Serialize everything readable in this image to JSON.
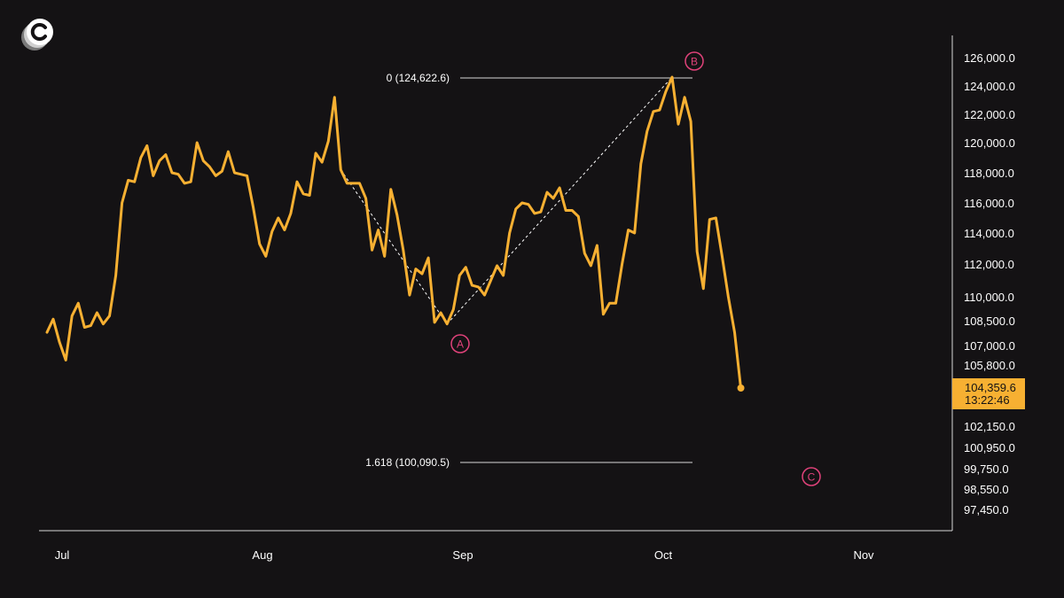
{
  "colors": {
    "background": "#141214",
    "line": "#f7b032",
    "marker": "#e0427a",
    "axis": "#d8d8d8",
    "text": "#ffffff",
    "price_tag_bg": "#f7b032",
    "price_tag_text": "#141214"
  },
  "logo": {
    "icon": "brand-logo-c-icon"
  },
  "price_tag": {
    "price": "104,359.6",
    "countdown": "13:22:46"
  },
  "chart_data": {
    "type": "line",
    "title": "",
    "xlabel": "",
    "ylabel": "",
    "x_ticks": [
      "Jul",
      "Aug",
      "Sep",
      "Oct",
      "Nov"
    ],
    "y_ticks": [
      "126,000.0",
      "124,000.0",
      "122,000.0",
      "120,000.0",
      "118,000.0",
      "116,000.0",
      "114,000.0",
      "112,000.0",
      "110,000.0",
      "108,500.0",
      "107,000.0",
      "105,800.0",
      "102,150.0",
      "100,950.0",
      "99,750.0",
      "98,550.0",
      "97,450.0"
    ],
    "grid": false,
    "series": [
      {
        "values": [
          107800,
          108600,
          107200,
          106100,
          108800,
          109600,
          108100,
          108200,
          109000,
          108300,
          108800,
          111300,
          116000,
          117500,
          117400,
          119000,
          119800,
          117800,
          118800,
          119200,
          118000,
          117900,
          117300,
          117400,
          120000,
          118800,
          118400,
          117800,
          118100,
          119400,
          118000,
          117900,
          117800,
          115700,
          113300,
          112500,
          114100,
          115000,
          114200,
          115300,
          117400,
          116600,
          116500,
          119300,
          118700,
          120100,
          123200,
          118200,
          117300,
          117300,
          117300,
          116300,
          112900,
          114200,
          112500,
          116900,
          115200,
          112900,
          110100,
          111700,
          111400,
          112400,
          108400,
          109000,
          108300,
          109200,
          111300,
          111800,
          110700,
          110600,
          110100,
          111000,
          111900,
          111300,
          114000,
          115600,
          116000,
          115900,
          115300,
          115400,
          116700,
          116300,
          117000,
          115500,
          115500,
          115100,
          112700,
          111900,
          113200,
          108900,
          109600,
          109600,
          112000,
          114200,
          114000,
          118600,
          120800,
          122200,
          122300,
          123600,
          124622.6,
          121300,
          123200,
          121500,
          112800,
          110500,
          114900,
          115000,
          112500,
          110000,
          107800,
          104359.6
        ]
      }
    ],
    "wave_labels": [
      {
        "label": "A",
        "value": 108300,
        "index": 64
      },
      {
        "label": "B",
        "value": 124622.6,
        "index": 100
      },
      {
        "label": "C",
        "value": null,
        "index": 127
      }
    ],
    "fib_levels": [
      {
        "label": "0 (124,622.6)",
        "value": 124622.6
      },
      {
        "label": "1.618 (100,090.5)",
        "value": 100090.5
      }
    ]
  }
}
